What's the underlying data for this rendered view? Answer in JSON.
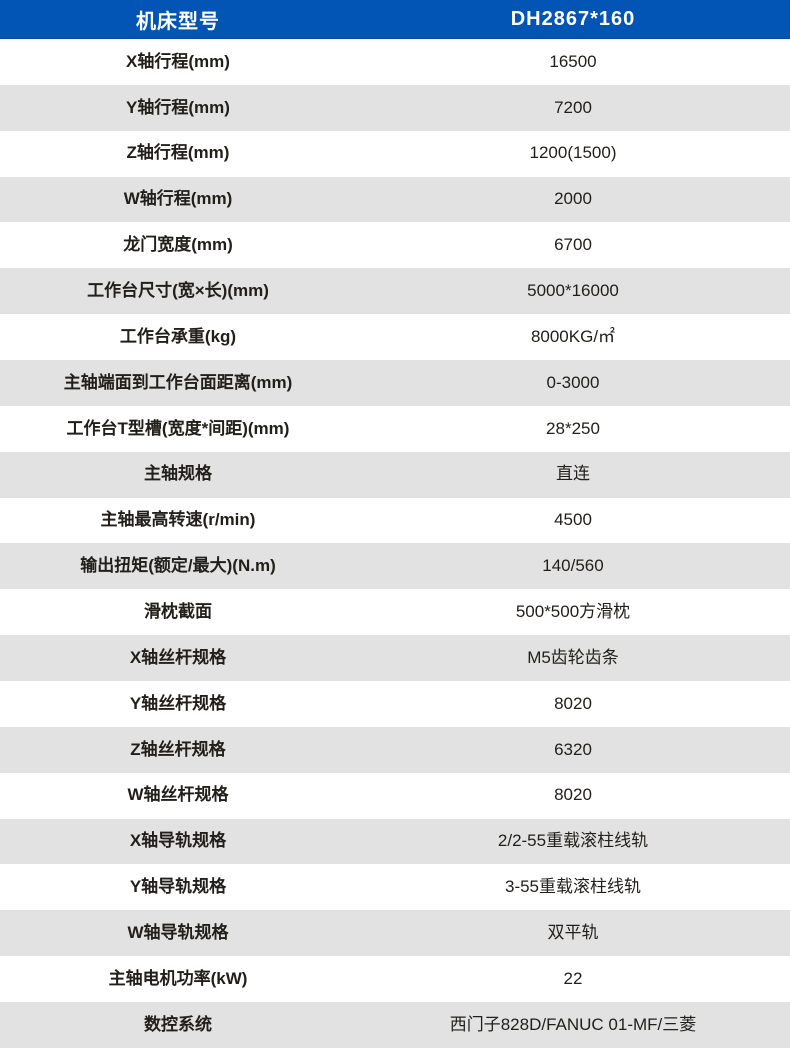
{
  "table": {
    "header": {
      "label_col": "机床型号",
      "value_col": "DH2867*160"
    },
    "rows": [
      {
        "label": "X轴行程(mm)",
        "value": "16500"
      },
      {
        "label": "Y轴行程(mm)",
        "value": "7200"
      },
      {
        "label": "Z轴行程(mm)",
        "value": "1200(1500)"
      },
      {
        "label": "W轴行程(mm)",
        "value": "2000"
      },
      {
        "label": "龙门宽度(mm)",
        "value": "6700"
      },
      {
        "label": "工作台尺寸(宽×长)(mm)",
        "value": "5000*16000"
      },
      {
        "label": "工作台承重(kg)",
        "value": "8000KG/㎡"
      },
      {
        "label": "主轴端面到工作台面距离(mm)",
        "value": "0-3000"
      },
      {
        "label": "工作台T型槽(宽度*间距)(mm)",
        "value": "28*250"
      },
      {
        "label": "主轴规格",
        "value": "直连"
      },
      {
        "label": "主轴最高转速(r/min)",
        "value": "4500"
      },
      {
        "label": "输出扭矩(额定/最大)(N.m)",
        "value": "140/560"
      },
      {
        "label": "滑枕截面",
        "value": "500*500方滑枕"
      },
      {
        "label": "X轴丝杆规格",
        "value": "M5齿轮齿条"
      },
      {
        "label": "Y轴丝杆规格",
        "value": "8020"
      },
      {
        "label": "Z轴丝杆规格",
        "value": "6320"
      },
      {
        "label": "W轴丝杆规格",
        "value": "8020"
      },
      {
        "label": "X轴导轨规格",
        "value": "2/2-55重载滚柱线轨"
      },
      {
        "label": "Y轴导轨规格",
        "value": "3-55重载滚柱线轨"
      },
      {
        "label": "W轴导轨规格",
        "value": "双平轨"
      },
      {
        "label": "主轴电机功率(kW)",
        "value": "22"
      },
      {
        "label": "数控系统",
        "value": "西门子828D/FANUC 01-MF/三菱"
      }
    ],
    "colors": {
      "header_bg": "#0355b5",
      "header_text": "#ffffff",
      "row_bg": "#ffffff",
      "row_alt_bg": "#e2e2e2",
      "body_text": "#221e19"
    }
  }
}
